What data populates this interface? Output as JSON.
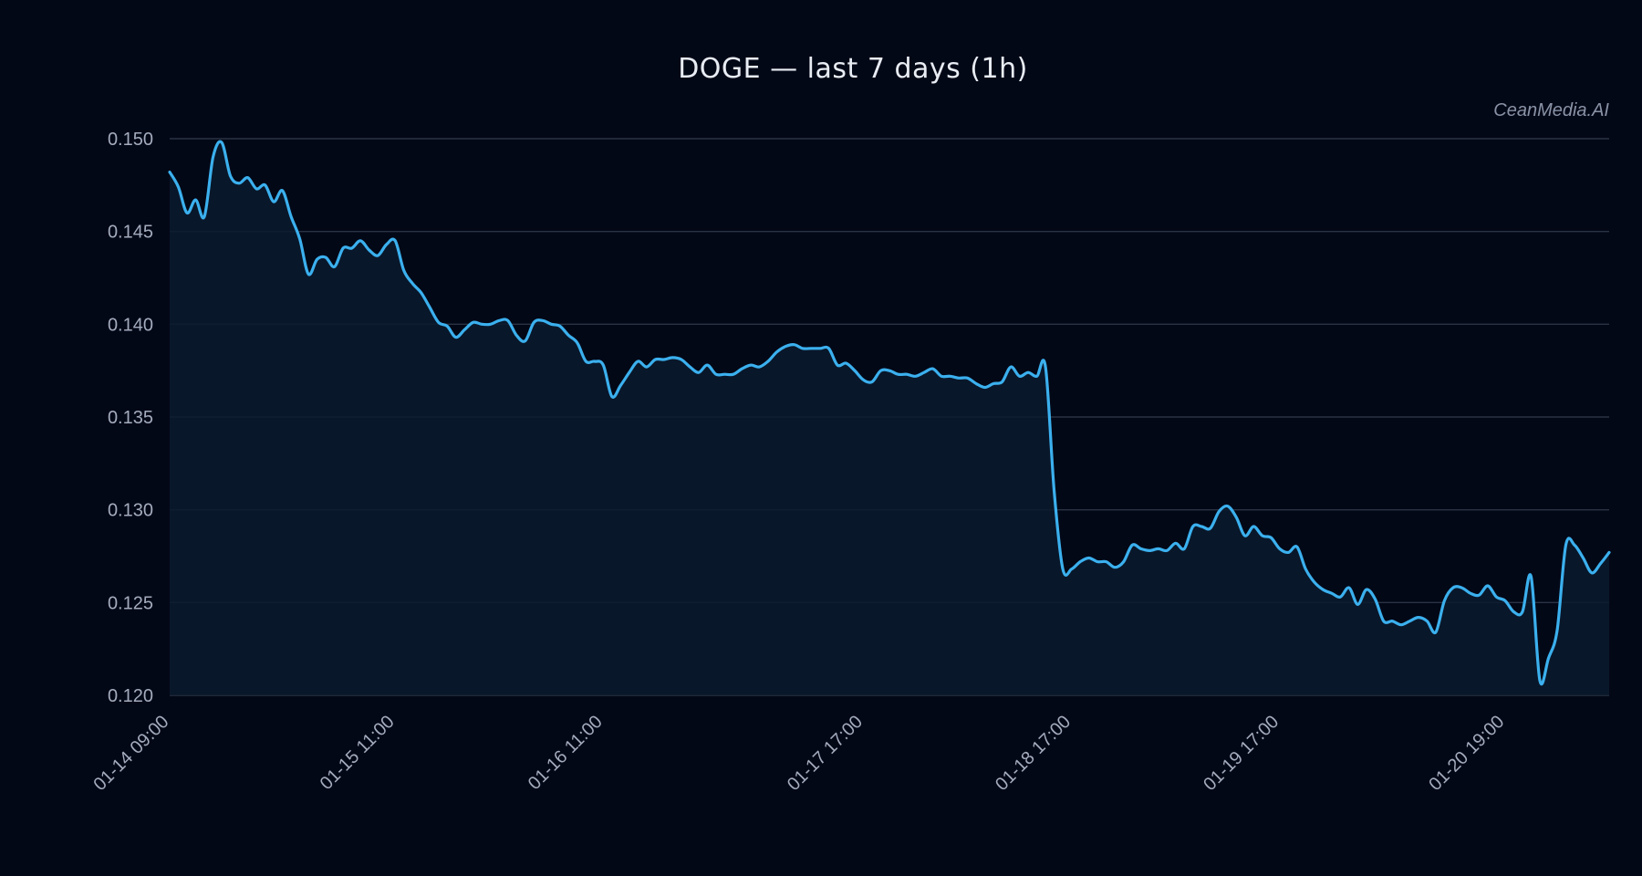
{
  "chart_data": {
    "type": "area",
    "title": "DOGE — last 7 days (1h)",
    "watermark": "CeanMedia.AI",
    "xlabel": "",
    "ylabel": "",
    "ylim": [
      0.12,
      0.15
    ],
    "grid": true,
    "y_ticks": [
      "0.150",
      "0.145",
      "0.140",
      "0.135",
      "0.130",
      "0.125",
      "0.120"
    ],
    "y_tick_values": [
      0.15,
      0.145,
      0.14,
      0.135,
      0.13,
      0.125,
      0.12
    ],
    "x_ticks": [
      {
        "label": "01-14 09:00",
        "index": 0
      },
      {
        "label": "01-15 11:00",
        "index": 26
      },
      {
        "label": "01-16 11:00",
        "index": 50
      },
      {
        "label": "01-17 17:00",
        "index": 80
      },
      {
        "label": "01-18 17:00",
        "index": 104
      },
      {
        "label": "01-19 17:00",
        "index": 128
      },
      {
        "label": "01-20 19:00",
        "index": 154
      }
    ],
    "colors": {
      "line": "#3bb0ee",
      "area": "#0a1a2e",
      "background": "#030817",
      "grid": "#2a3344"
    },
    "series": [
      {
        "values": [
          0.1482,
          0.1474,
          0.146,
          0.1467,
          0.1458,
          0.149,
          0.1498,
          0.148,
          0.1476,
          0.1479,
          0.1473,
          0.1475,
          0.1466,
          0.1472,
          0.1458,
          0.1446,
          0.1427,
          0.1435,
          0.1436,
          0.1431,
          0.1441,
          0.1441,
          0.1445,
          0.144,
          0.1437,
          0.1443,
          0.1445,
          0.1429,
          0.1422,
          0.1417,
          0.1409,
          0.1401,
          0.1399,
          0.1393,
          0.1397,
          0.1401,
          0.14,
          0.14,
          0.1402,
          0.1402,
          0.1394,
          0.1391,
          0.1401,
          0.1402,
          0.14,
          0.1399,
          0.1394,
          0.139,
          0.138,
          0.138,
          0.1378,
          0.1361,
          0.1367,
          0.1374,
          0.138,
          0.1377,
          0.1381,
          0.1381,
          0.1382,
          0.1381,
          0.1377,
          0.1374,
          0.1378,
          0.1373,
          0.1373,
          0.1373,
          0.1376,
          0.1378,
          0.1377,
          0.138,
          0.1385,
          0.1388,
          0.1389,
          0.1387,
          0.1387,
          0.1387,
          0.1387,
          0.1378,
          0.1379,
          0.1375,
          0.137,
          0.1369,
          0.1375,
          0.1375,
          0.1373,
          0.1373,
          0.1372,
          0.1374,
          0.1376,
          0.1372,
          0.1372,
          0.1371,
          0.1371,
          0.1368,
          0.1366,
          0.1368,
          0.1369,
          0.1377,
          0.1372,
          0.1374,
          0.1372,
          0.1377,
          0.131,
          0.1268,
          0.1268,
          0.1272,
          0.1274,
          0.1272,
          0.1272,
          0.1269,
          0.1272,
          0.1281,
          0.1279,
          0.1278,
          0.1279,
          0.1278,
          0.1282,
          0.1279,
          0.1291,
          0.1291,
          0.129,
          0.1299,
          0.1302,
          0.1296,
          0.1286,
          0.1291,
          0.1286,
          0.1285,
          0.1279,
          0.1277,
          0.128,
          0.1268,
          0.1261,
          0.1257,
          0.1255,
          0.1253,
          0.1258,
          0.1249,
          0.1257,
          0.1252,
          0.124,
          0.124,
          0.1238,
          0.124,
          0.1242,
          0.124,
          0.1234,
          0.1251,
          0.1258,
          0.1258,
          0.1255,
          0.1254,
          0.1259,
          0.1253,
          0.1251,
          0.1245,
          0.1245,
          0.1264,
          0.1208,
          0.122,
          0.1235,
          0.1281,
          0.1281,
          0.1274,
          0.1266,
          0.1271,
          0.1277
        ]
      }
    ]
  }
}
